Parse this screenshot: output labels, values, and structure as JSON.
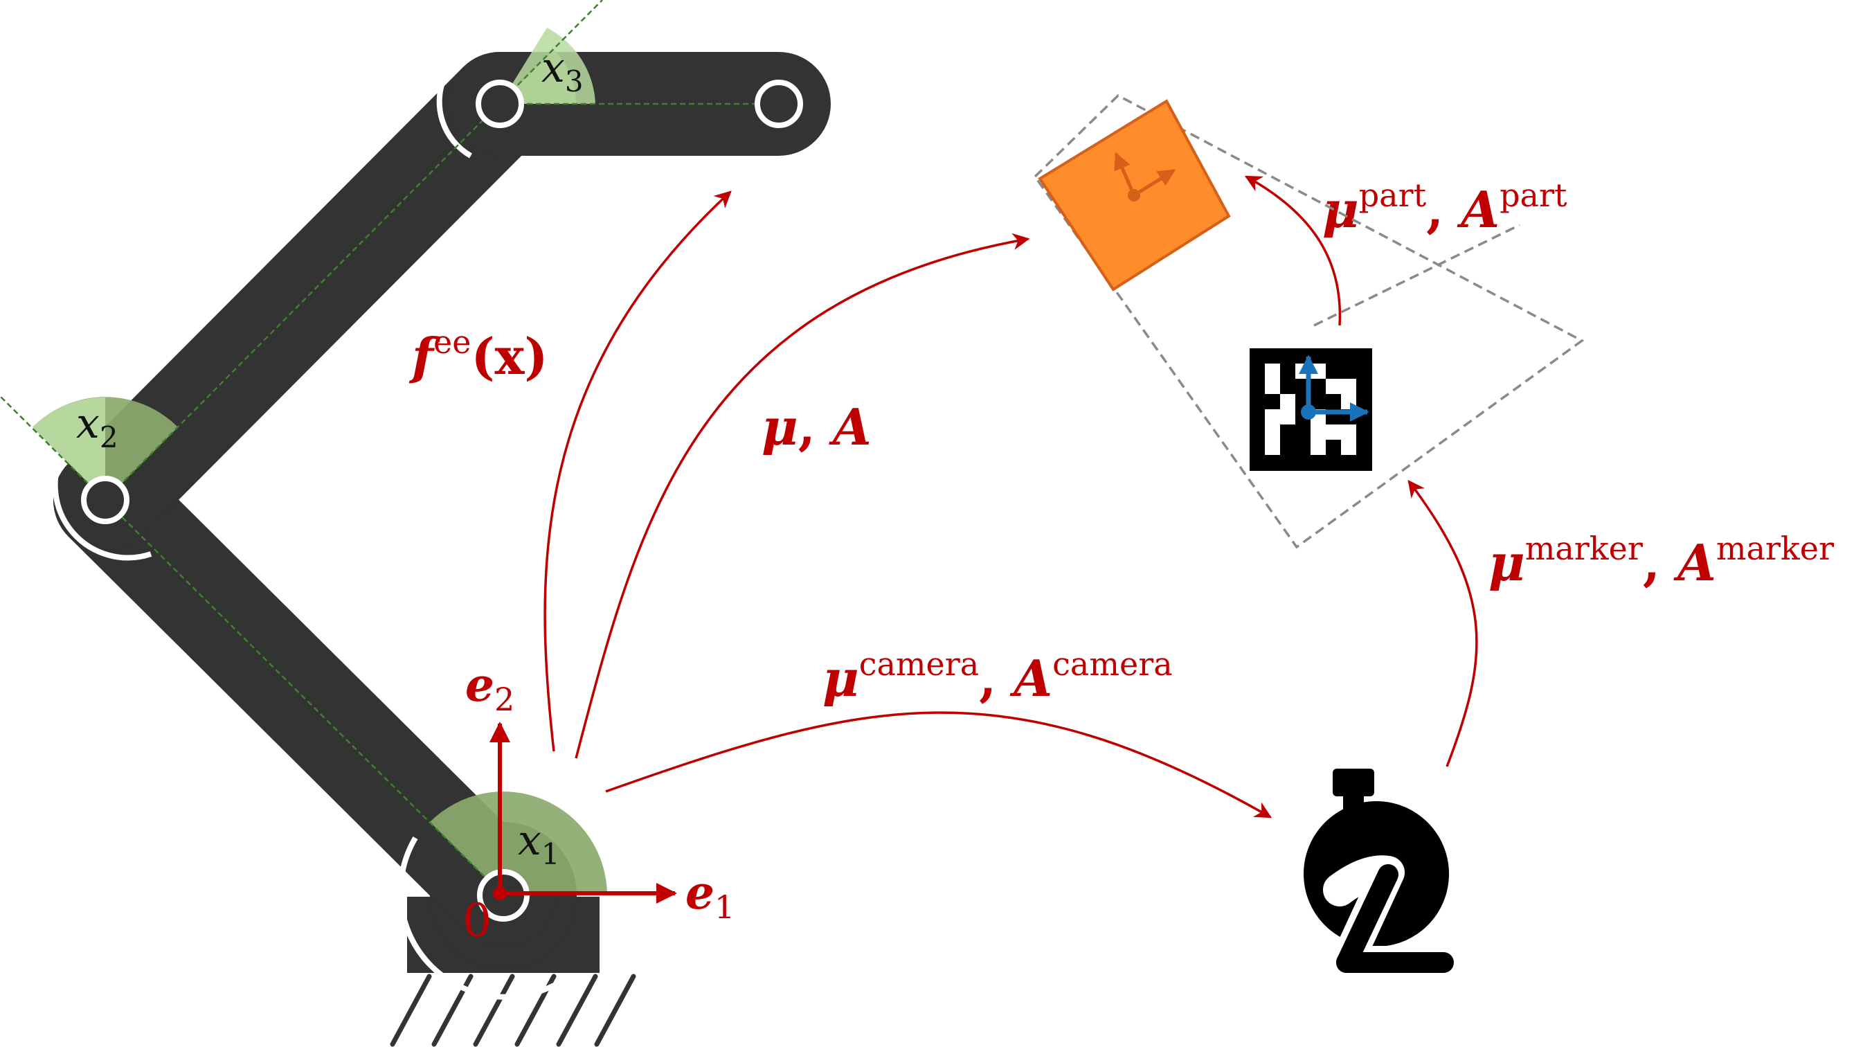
{
  "colors": {
    "link": "#333333",
    "arrow": "#c00000",
    "joint_sector": "#8aaa6e",
    "joint_sector_light": "#b7d9a0",
    "guide": "#3f7f2f",
    "part_fill": "#ff8c2a",
    "part_stroke": "#d4601a",
    "marker_axes": "#1a73b8",
    "dashed": "#8a8a8a"
  },
  "joints": {
    "x1": {
      "base": "x",
      "sub": "1"
    },
    "x2": {
      "base": "x",
      "sub": "2"
    },
    "x3": {
      "base": "x",
      "sub": "3"
    }
  },
  "origin_label": "0",
  "axes": {
    "e1": {
      "base": "e",
      "sub": "1"
    },
    "e2": {
      "base": "e",
      "sub": "2"
    }
  },
  "transforms": {
    "fee": {
      "base": "f",
      "sup": "ee",
      "arg": "(x)"
    },
    "mu_a": {
      "mu": "μ",
      "sep": ", ",
      "a": "A"
    },
    "camera": {
      "mu": "μ",
      "sup": "camera",
      "sep": ", ",
      "a": "A",
      "sup2": "camera"
    },
    "marker": {
      "mu": "μ",
      "sup": "marker",
      "sep": ", ",
      "a": "A",
      "sup2": "marker"
    },
    "part": {
      "mu": "μ",
      "sup": "part",
      "sep": ", ",
      "a": "A",
      "sup2": "part"
    }
  },
  "icons": [
    "robot-arm-icon",
    "camera-icon",
    "aruco-marker-icon",
    "part-icon"
  ]
}
